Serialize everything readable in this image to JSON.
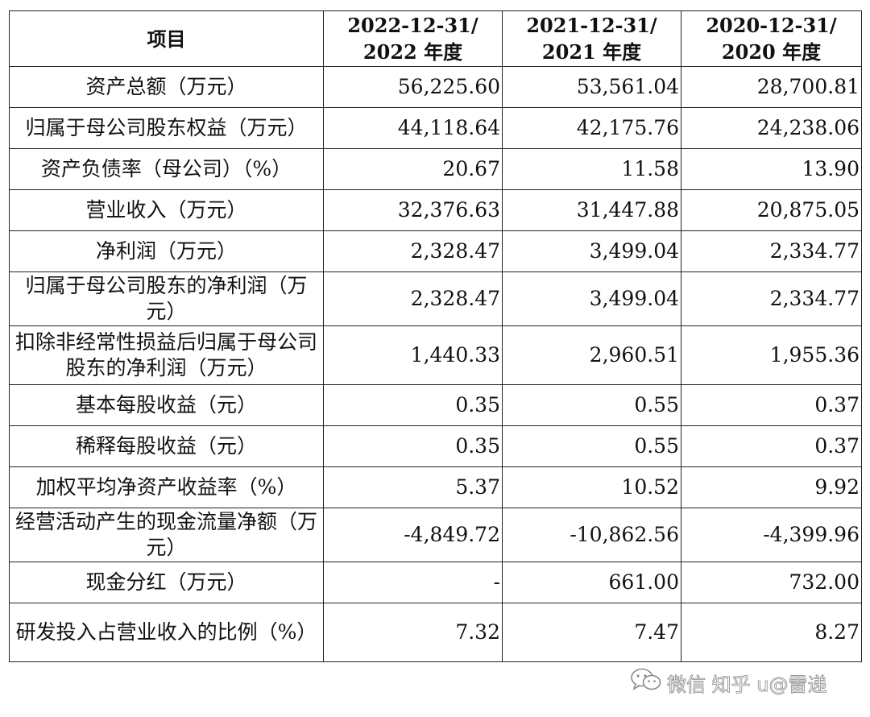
{
  "table": {
    "headers": {
      "item": "项目",
      "periods": [
        [
          "2022-12-31/",
          "2022 年度"
        ],
        [
          "2021-12-31/",
          "2021 年度"
        ],
        [
          "2020-12-31/",
          "2020 年度"
        ]
      ]
    },
    "rows": [
      {
        "label": "资产总额（万元）",
        "values": [
          "56,225.60",
          "53,561.04",
          "28,700.81"
        ]
      },
      {
        "label": "归属于母公司股东权益（万元）",
        "values": [
          "44,118.64",
          "42,175.76",
          "24,238.06"
        ]
      },
      {
        "label": "资产负债率（母公司）（%）",
        "values": [
          "20.67",
          "11.58",
          "13.90"
        ]
      },
      {
        "label": "营业收入（万元）",
        "values": [
          "32,376.63",
          "31,447.88",
          "20,875.05"
        ]
      },
      {
        "label": "净利润（万元）",
        "values": [
          "2,328.47",
          "3,499.04",
          "2,334.77"
        ]
      },
      {
        "label": "归属于母公司股东的净利润（万元）",
        "values": [
          "2,328.47",
          "3,499.04",
          "2,334.77"
        ]
      },
      {
        "label": "扣除非经常性损益后归属于母公司股东的净利润（万元）",
        "values": [
          "1,440.33",
          "2,960.51",
          "1,955.36"
        ]
      },
      {
        "label": "基本每股收益（元）",
        "values": [
          "0.35",
          "0.55",
          "0.37"
        ]
      },
      {
        "label": "稀释每股收益（元）",
        "values": [
          "0.35",
          "0.55",
          "0.37"
        ]
      },
      {
        "label": "加权平均净资产收益率（%）",
        "values": [
          "5.37",
          "10.52",
          "9.92"
        ]
      },
      {
        "label": "经营活动产生的现金流量净额（万元）",
        "values": [
          "-4,849.72",
          "-10,862.56",
          "-4,399.96"
        ]
      },
      {
        "label": "现金分红（万元）",
        "values": [
          "-",
          "661.00",
          "732.00"
        ]
      },
      {
        "label": "研发投入占营业收入的比例（%）",
        "values": [
          "7.32",
          "7.47",
          "8.27"
        ]
      }
    ]
  },
  "watermark": {
    "text": "微信 知乎 u@雷递",
    "icon": "wechat-icon"
  }
}
